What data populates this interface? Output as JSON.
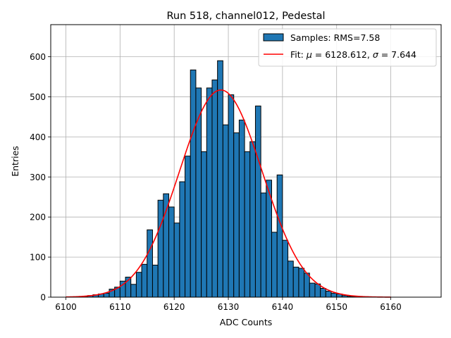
{
  "chart_data": {
    "type": "bar",
    "title": "Run 518, channel012, Pedestal",
    "xlabel": "ADC Counts",
    "ylabel": "Entries",
    "xlim": [
      6097.2,
      6169.3
    ],
    "ylim": [
      0,
      680
    ],
    "xticks": [
      6100,
      6110,
      6120,
      6130,
      6140,
      6150,
      6160
    ],
    "yticks": [
      0,
      100,
      200,
      300,
      400,
      500,
      600
    ],
    "grid": true,
    "legend_position": "top-right",
    "bin_width": 1,
    "series": [
      {
        "name": "Samples: RMS=7.58",
        "kind": "histogram",
        "color": "#1f77b4",
        "edge_color": "#000000",
        "bins_start": [
          6100,
          6101,
          6102,
          6103,
          6104,
          6105,
          6106,
          6107,
          6108,
          6109,
          6110,
          6111,
          6112,
          6113,
          6114,
          6115,
          6116,
          6117,
          6118,
          6119,
          6120,
          6121,
          6122,
          6123,
          6124,
          6125,
          6126,
          6127,
          6128,
          6129,
          6130,
          6131,
          6132,
          6133,
          6134,
          6135,
          6136,
          6137,
          6138,
          6139,
          6140,
          6141,
          6142,
          6143,
          6144,
          6145,
          6146,
          6147,
          6148,
          6149,
          6150,
          6151,
          6152,
          6153,
          6154,
          6155,
          6156,
          6157,
          6158,
          6159,
          6160,
          6161,
          6162,
          6163,
          6164,
          6165
        ],
        "counts": [
          0,
          0,
          1,
          2,
          4,
          6,
          8,
          10,
          20,
          25,
          40,
          50,
          32,
          62,
          82,
          168,
          80,
          242,
          258,
          225,
          185,
          288,
          352,
          567,
          522,
          363,
          522,
          542,
          590,
          430,
          505,
          410,
          442,
          363,
          388,
          477,
          260,
          292,
          162,
          305,
          142,
          90,
          75,
          72,
          60,
          35,
          33,
          22,
          15,
          10,
          8,
          4,
          2,
          2,
          1,
          1,
          0,
          0,
          0,
          0,
          0,
          0,
          0,
          0,
          0,
          0
        ]
      },
      {
        "name": "Fit: $\\mu$ = 6128.612, $\\sigma$ = 7.644",
        "kind": "gaussian-fit",
        "color": "#ff0000",
        "mu": 6128.612,
        "sigma": 7.644,
        "amplitude": 517,
        "x_range": [
          6100,
          6160
        ]
      }
    ],
    "legend": {
      "samples_label": "Samples: RMS=7.58",
      "fit_label_prefix": "Fit: ",
      "fit_mu_symbol": "μ",
      "fit_mu_value": " = 6128.612, ",
      "fit_sigma_symbol": "σ",
      "fit_sigma_value": " = 7.644"
    }
  }
}
